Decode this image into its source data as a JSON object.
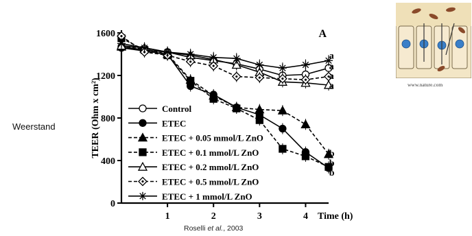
{
  "side_label": "Weerstand",
  "citation": {
    "prefix": "Roselli ",
    "etal": "et al.",
    "suffix": ", 2003"
  },
  "image_source": "www.nature.com",
  "chart_data": {
    "type": "line",
    "panel_label": "A",
    "xlabel": "Time (h)",
    "ylabel": "TEER (Ohm x cm²)",
    "xlim": [
      0,
      4.5
    ],
    "ylim": [
      0,
      1600
    ],
    "yticks": [
      0,
      400,
      800,
      1200,
      1600
    ],
    "xticks": [
      1,
      2,
      3,
      4
    ],
    "x": [
      0,
      0.5,
      1,
      1.5,
      2,
      2.5,
      3,
      3.5,
      4,
      4.5
    ],
    "series": [
      {
        "name": "Control",
        "marker": "circle-open",
        "dash": "solid",
        "values": [
          1470,
          1440,
          1420,
          1370,
          1340,
          1310,
          1260,
          1200,
          1210,
          1270
        ]
      },
      {
        "name": "ETEC",
        "marker": "circle-filled",
        "dash": "solid",
        "values": [
          1460,
          1430,
          1400,
          1100,
          1020,
          900,
          830,
          700,
          480,
          330
        ]
      },
      {
        "name": "ETEC + 0.05 mmol/L  ZnO",
        "marker": "triangle-filled",
        "dash": "dashed",
        "values": [
          1470,
          1450,
          1400,
          1160,
          1010,
          900,
          880,
          870,
          740,
          460
        ]
      },
      {
        "name": "ETEC + 0.1 mmol/L ZnO",
        "marker": "square-filled",
        "dash": "dashed",
        "values": [
          1550,
          1440,
          1390,
          1150,
          980,
          890,
          780,
          510,
          440,
          340
        ]
      },
      {
        "name": "ETEC + 0.2 mmol/L ZnO",
        "marker": "triangle-open",
        "dash": "solid",
        "values": [
          1480,
          1460,
          1420,
          1390,
          1350,
          1300,
          1230,
          1140,
          1130,
          1110
        ]
      },
      {
        "name": "ETEC + 0.5 mmol/L ZnO",
        "marker": "diamond-open",
        "dash": "dashed",
        "values": [
          1570,
          1420,
          1390,
          1330,
          1290,
          1190,
          1180,
          1170,
          1160,
          1190
        ]
      },
      {
        "name": "ETEC + 1 mmol/L ZnO",
        "marker": "star",
        "dash": "solid",
        "values": [
          1500,
          1460,
          1420,
          1400,
          1370,
          1360,
          1300,
          1270,
          1300,
          1340
        ]
      }
    ],
    "significance_labels": [
      {
        "text": "a",
        "x": 4.6,
        "y": 1390
      },
      {
        "text": "a",
        "x": 4.6,
        "y": 1290
      },
      {
        "text": "a",
        "x": 4.6,
        "y": 1200
      },
      {
        "text": "a",
        "x": 4.6,
        "y": 1110
      },
      {
        "text": "b",
        "x": 4.6,
        "y": 470
      },
      {
        "text": "b",
        "x": 4.6,
        "y": 380
      },
      {
        "text": "b",
        "x": 4.6,
        "y": 290
      }
    ],
    "legend_position": "bottom-left",
    "grid": false
  }
}
